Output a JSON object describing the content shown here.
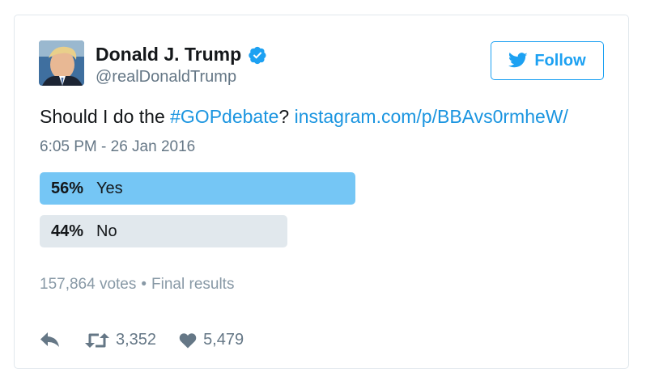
{
  "user": {
    "name": "Donald J. Trump",
    "handle": "@realDonaldTrump",
    "verified_icon": "verified-badge-icon",
    "avatar_icon": "user-avatar"
  },
  "follow_button": {
    "label": "Follow",
    "icon": "twitter-bird-icon"
  },
  "tweet": {
    "text_prefix": "Should I do the ",
    "hashtag": "#GOPdebate",
    "text_middle": "? ",
    "link": "instagram.com/p/BBAvs0rmheW/",
    "timestamp": "6:05 PM - 26 Jan 2016"
  },
  "poll": {
    "options": [
      {
        "percent_label": "56%",
        "label": "Yes",
        "value": 56,
        "color": "#75c6f5"
      },
      {
        "percent_label": "44%",
        "label": "No",
        "value": 44,
        "color": "#e1e8ed"
      }
    ],
    "votes": "157,864 votes",
    "separator": "•",
    "status": "Final results"
  },
  "actions": {
    "reply_icon": "reply-icon",
    "retweet_icon": "retweet-icon",
    "retweet_count": "3,352",
    "like_icon": "heart-icon",
    "like_count": "5,479"
  },
  "colors": {
    "accent": "#1da1f2",
    "link": "#1b95e0",
    "muted": "#657786"
  }
}
